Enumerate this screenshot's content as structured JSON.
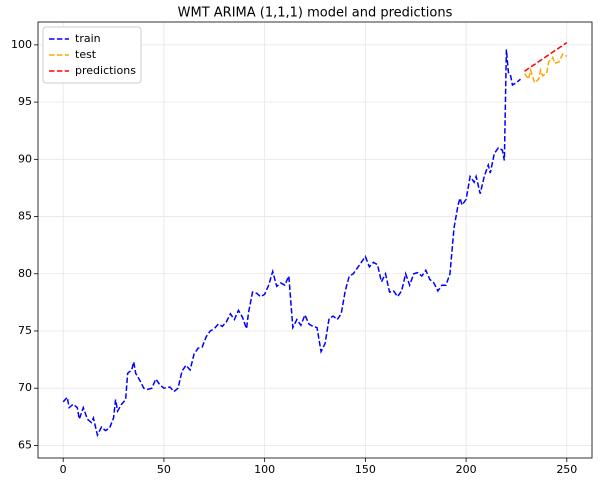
{
  "chart_data": {
    "type": "line",
    "title": "WMT ARIMA (1,1,1) model and predictions",
    "xlim": [
      -12.5,
      262.5
    ],
    "xticks": [
      0,
      50,
      100,
      150,
      200,
      250
    ],
    "ylim": [
      63.9,
      102.0
    ],
    "yticks": [
      65,
      70,
      75,
      80,
      85,
      90,
      95,
      100
    ],
    "grid": true,
    "legend": "upper left",
    "series": [
      {
        "name": "train",
        "color": "#0000ff",
        "x": [
          0,
          2,
          3,
          5,
          7,
          8,
          10,
          12,
          14,
          15,
          17,
          19,
          21,
          23,
          25,
          26,
          27,
          29,
          31,
          32,
          34,
          35,
          36,
          38,
          40,
          42,
          44,
          46,
          48,
          50,
          53,
          55,
          57,
          59,
          61,
          63,
          65,
          67,
          69,
          71,
          73,
          75,
          77,
          79,
          81,
          83,
          85,
          87,
          89,
          91,
          92,
          94,
          96,
          98,
          100,
          102,
          104,
          106,
          108,
          110,
          112,
          114,
          116,
          118,
          120,
          122,
          124,
          126,
          128,
          130,
          132,
          134,
          136,
          138,
          140,
          142,
          144,
          146,
          148,
          150,
          152,
          154,
          156,
          158,
          160,
          162,
          164,
          166,
          168,
          170,
          172,
          174,
          176,
          178,
          180,
          182,
          184,
          186,
          188,
          190,
          192,
          194,
          196,
          197,
          198,
          200,
          202,
          204,
          205,
          207,
          209,
          211,
          212,
          214,
          216,
          218,
          219,
          220,
          221,
          222,
          223,
          225,
          227
        ],
        "values": [
          68.8,
          69.2,
          68.3,
          68.6,
          68.3,
          67.3,
          68.3,
          67.3,
          67.0,
          67.4,
          65.9,
          66.6,
          66.3,
          66.5,
          67.4,
          69.0,
          68.0,
          68.6,
          69.0,
          71.3,
          71.6,
          72.3,
          71.3,
          70.7,
          70.0,
          69.9,
          70.0,
          70.8,
          70.3,
          70.0,
          70.1,
          69.7,
          70.0,
          71.5,
          72.0,
          71.6,
          73.0,
          73.5,
          73.6,
          74.5,
          75.0,
          75.2,
          75.6,
          75.4,
          75.8,
          76.5,
          76.0,
          76.8,
          76.2,
          75.2,
          76.6,
          78.4,
          78.3,
          78.0,
          78.2,
          79.0,
          80.2,
          78.9,
          79.2,
          79.0,
          79.8,
          75.3,
          76.0,
          75.5,
          76.4,
          75.6,
          75.4,
          75.3,
          73.2,
          73.9,
          76.1,
          76.3,
          76.0,
          76.5,
          78.5,
          79.8,
          80.0,
          80.5,
          81.0,
          81.5,
          80.6,
          81.0,
          80.8,
          79.3,
          80.0,
          78.4,
          78.5,
          78.0,
          78.5,
          80.0,
          79.0,
          80.0,
          80.1,
          79.8,
          80.3,
          79.5,
          79.2,
          78.5,
          79.0,
          79.0,
          80.0,
          84.0,
          86.0,
          86.6,
          86.0,
          86.5,
          88.5,
          88.0,
          88.5,
          87.0,
          88.5,
          89.5,
          88.8,
          90.5,
          91.0,
          90.8,
          89.9,
          99.6,
          97.6,
          97.4,
          96.5,
          96.7,
          97.0
        ]
      },
      {
        "name": "test",
        "color": "#ffa500",
        "x": [
          229,
          231,
          232,
          234,
          236,
          237,
          238,
          240,
          241,
          243,
          244,
          246,
          248,
          250
        ],
        "values": [
          97.5,
          97.0,
          97.8,
          96.7,
          97.0,
          97.8,
          97.3,
          97.5,
          98.5,
          98.9,
          98.4,
          98.5,
          99.2,
          99.0
        ]
      },
      {
        "name": "predictions",
        "color": "#ff0000",
        "x": [
          229,
          250
        ],
        "values": [
          97.7,
          100.2
        ]
      }
    ]
  }
}
